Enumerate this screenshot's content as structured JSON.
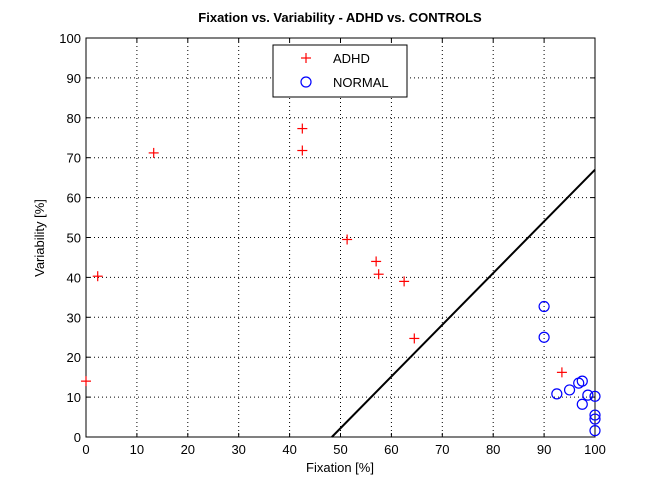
{
  "chart_data": {
    "type": "scatter",
    "title": "Fixation vs. Variability - ADHD vs. CONTROLS",
    "xlabel": "Fixation [%]",
    "ylabel": "Variability [%]",
    "xlim": [
      0,
      100
    ],
    "ylim": [
      0,
      100
    ],
    "xticks": [
      0,
      10,
      20,
      30,
      40,
      50,
      60,
      70,
      80,
      90,
      100
    ],
    "yticks": [
      0,
      10,
      20,
      30,
      40,
      50,
      60,
      70,
      80,
      90,
      100
    ],
    "grid": true,
    "legend_position": "top-center",
    "series": [
      {
        "name": "ADHD",
        "marker": "plus",
        "color": "#ff0000",
        "points": [
          [
            0,
            14
          ],
          [
            2.3,
            40.3
          ],
          [
            13.3,
            71.2
          ],
          [
            42.5,
            77.3
          ],
          [
            42.5,
            71.8
          ],
          [
            51.3,
            49.5
          ],
          [
            57,
            44
          ],
          [
            57.5,
            40.8
          ],
          [
            62.5,
            39
          ],
          [
            64.5,
            24.7
          ],
          [
            93.5,
            16.2
          ]
        ]
      },
      {
        "name": "NORMAL",
        "marker": "circle",
        "color": "#0000ff",
        "points": [
          [
            90,
            32.7
          ],
          [
            90,
            25
          ],
          [
            92.5,
            10.8
          ],
          [
            95,
            11.8
          ],
          [
            96.8,
            13.5
          ],
          [
            97.5,
            14
          ],
          [
            98.6,
            10.5
          ],
          [
            100,
            10.2
          ],
          [
            97.5,
            8.2
          ],
          [
            100,
            5.5
          ],
          [
            100,
            4.5
          ],
          [
            100,
            1.6
          ]
        ]
      }
    ],
    "line": {
      "color": "#000000",
      "points": [
        [
          48.3,
          0
        ],
        [
          100,
          67
        ]
      ]
    }
  }
}
